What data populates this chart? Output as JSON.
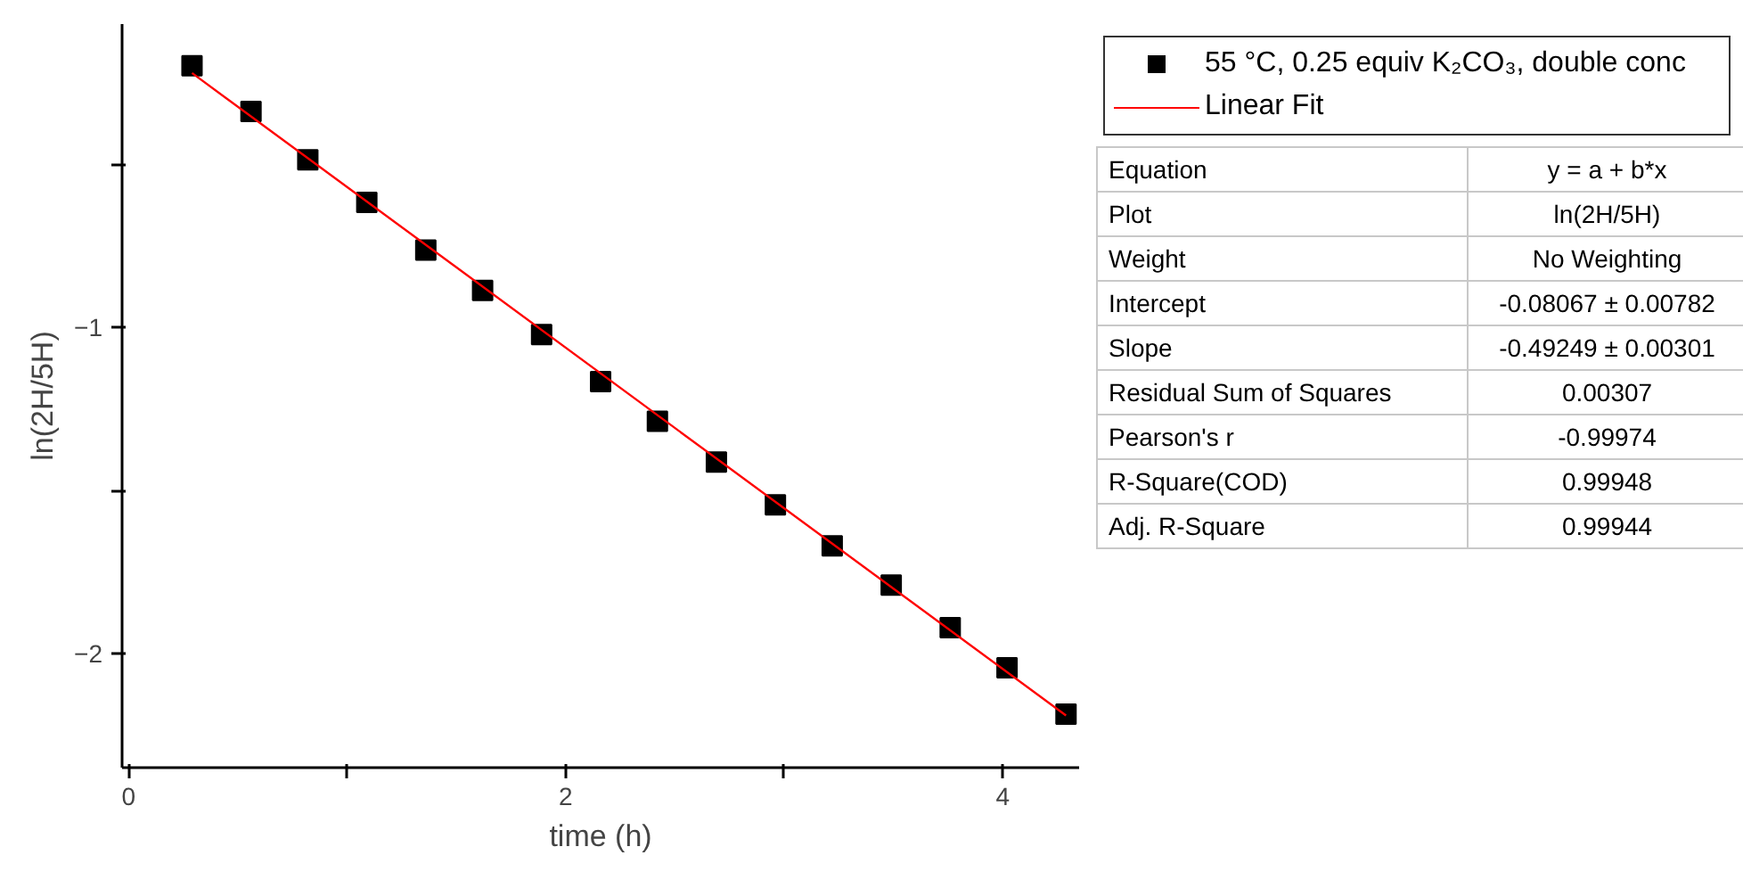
{
  "chart_data": {
    "type": "scatter",
    "xlabel": "time (h)",
    "ylabel": "ln(2H/5H)",
    "xlim": [
      -0.03,
      4.35
    ],
    "ylim": [
      -2.35,
      -0.07
    ],
    "xticks": [
      0,
      {
        "value": 1,
        "label": null
      },
      2,
      {
        "value": 3,
        "label": null
      },
      4
    ],
    "yticks": [
      {
        "value": -0.5,
        "label": null
      },
      -1,
      {
        "value": -1.5,
        "label": null
      },
      -2
    ],
    "grid": false,
    "legend": "top right",
    "series": [
      {
        "name": "55 °C, 0.25 equiv K₂CO₃, double conc",
        "marker": "square",
        "color": "#000000",
        "x": [
          0.29,
          0.56,
          0.82,
          1.09,
          1.36,
          1.62,
          1.89,
          2.16,
          2.42,
          2.69,
          2.96,
          3.22,
          3.49,
          3.76,
          4.02,
          4.29
        ],
        "values": [
          -0.198,
          -0.338,
          -0.486,
          -0.617,
          -0.763,
          -0.887,
          -1.022,
          -1.166,
          -1.288,
          -1.413,
          -1.544,
          -1.67,
          -1.79,
          -1.921,
          -2.044,
          -2.186
        ]
      },
      {
        "name": "Linear Fit",
        "type": "line",
        "marker": "none",
        "color": "#ff0000",
        "line_style": "solid",
        "x": [
          0.29,
          4.29
        ],
        "values": [
          -0.22,
          -2.19
        ]
      }
    ],
    "annotations": [
      "Equation",
      "y = a + b*x",
      "Plot",
      "ln(2H/5H)",
      "Weight",
      "No Weighting",
      "Intercept",
      "-0.08067 ± 0.00782",
      "Slope",
      "-0.49249 ± 0.00301",
      "Residual Sum of Squares",
      "0.00307",
      "Pearson's r",
      "-0.99974",
      "R-Square(COD)",
      "0.99948",
      "Adj. R-Square",
      "0.99944"
    ]
  }
}
